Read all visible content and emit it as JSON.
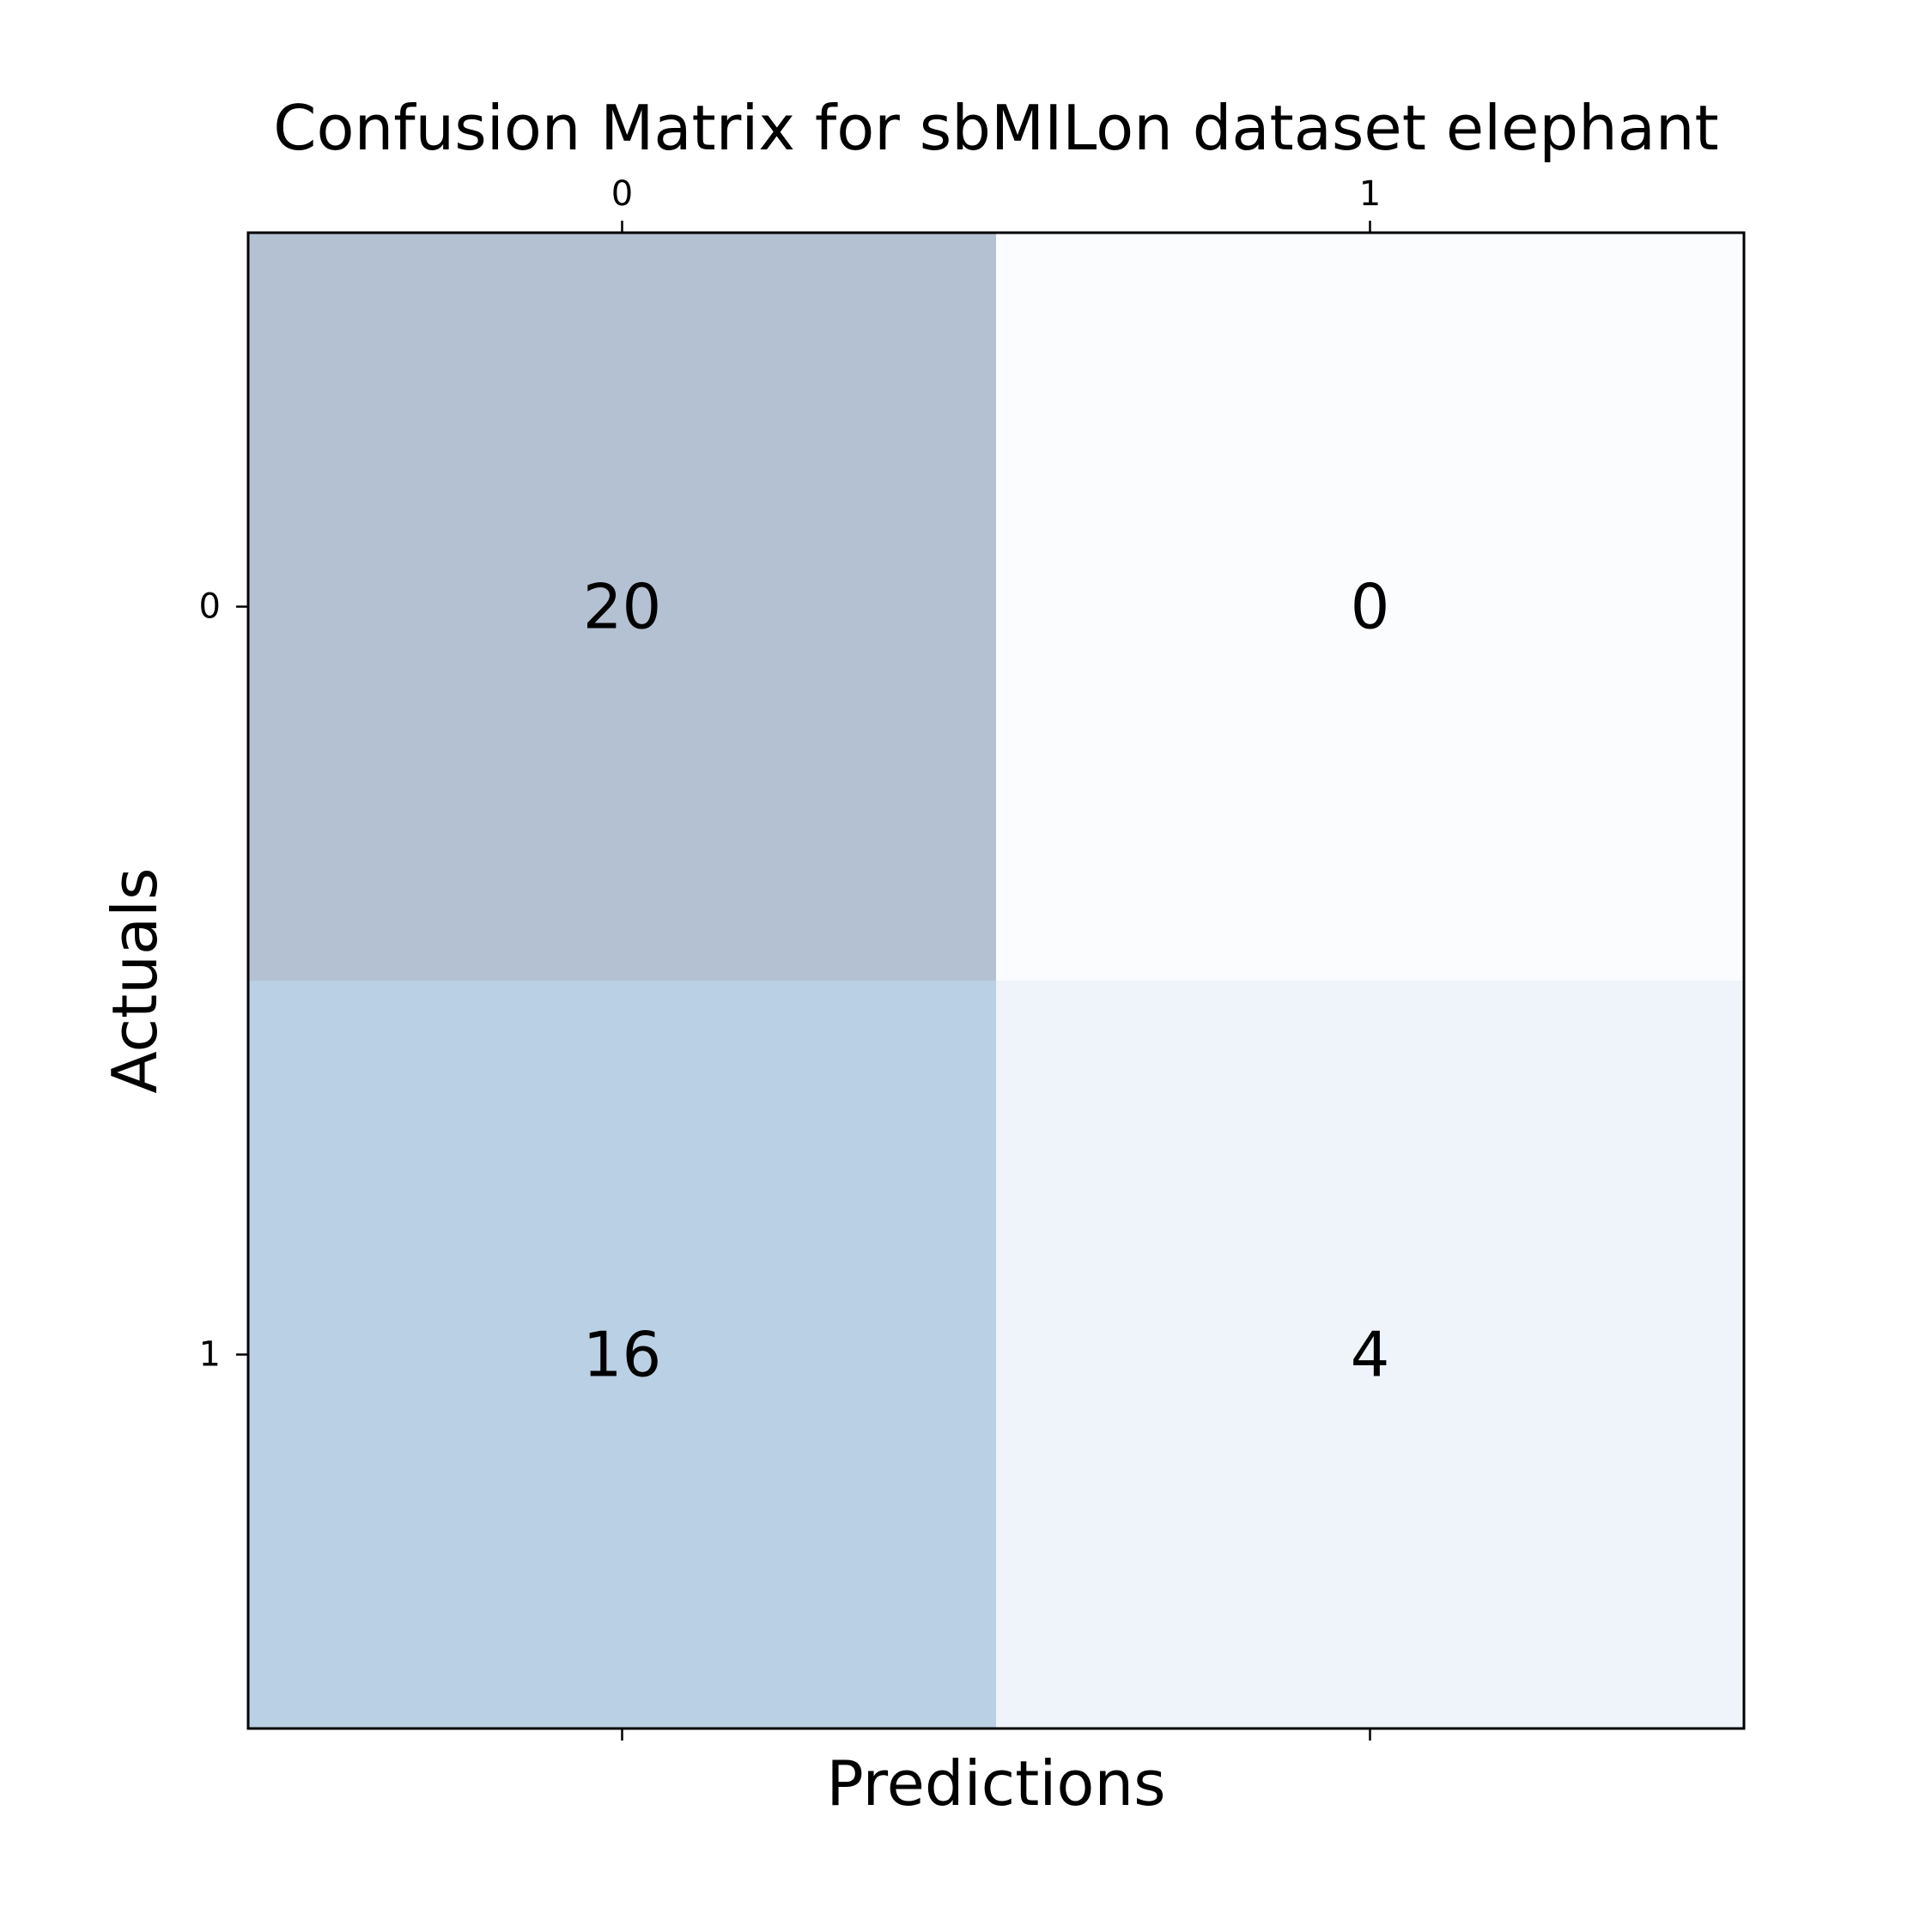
{
  "chart_data": {
    "type": "heatmap",
    "title": "Confusion Matrix for sbMILon dataset elephant",
    "xlabel": "Predictions",
    "ylabel": "Actuals",
    "x_categories": [
      "0",
      "1"
    ],
    "y_categories": [
      "0",
      "1"
    ],
    "values": [
      [
        20,
        0
      ],
      [
        16,
        4
      ]
    ],
    "x_ticks_position": "top",
    "colormap": "Blues",
    "cell_colors": [
      [
        "#b4c1d2",
        "#fbfcfe"
      ],
      [
        "#bad0e4",
        "#eff4fb"
      ]
    ],
    "vmax": 20,
    "grid": false,
    "legend": "none"
  }
}
